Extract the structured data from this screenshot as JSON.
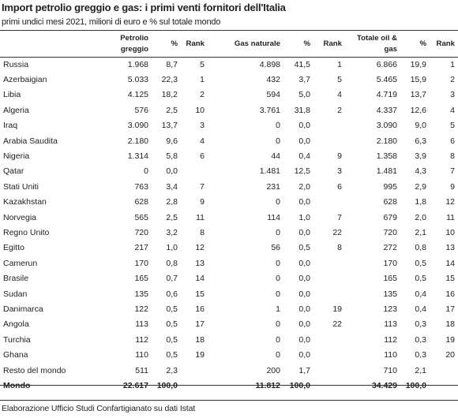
{
  "title": "Import petrolio greggio e gas: i primi venti fornitori dell'Italia",
  "subtitle": "primi undici mesi 2021, milioni di euro e % sul totale mondo",
  "headers": {
    "country": "",
    "petrolio": "Petrolio greggio",
    "pct1": "%",
    "rank1": "Rank",
    "gas": "Gas naturale",
    "pct2": "%",
    "rank2": "Rank",
    "totale": "Totale oil & gas",
    "pct3": "%",
    "rank3": "Rank"
  },
  "rows": [
    {
      "country": "Russia",
      "oil": "1.968",
      "oil_pct": "8,7",
      "oil_rank": "5",
      "gas": "4.898",
      "gas_pct": "41,5",
      "gas_rank": "1",
      "tot": "6.866",
      "tot_pct": "19,9",
      "tot_rank": "1"
    },
    {
      "country": "Azerbaigian",
      "oil": "5.033",
      "oil_pct": "22,3",
      "oil_rank": "1",
      "gas": "432",
      "gas_pct": "3,7",
      "gas_rank": "5",
      "tot": "5.465",
      "tot_pct": "15,9",
      "tot_rank": "2"
    },
    {
      "country": "Libia",
      "oil": "4.125",
      "oil_pct": "18,2",
      "oil_rank": "2",
      "gas": "594",
      "gas_pct": "5,0",
      "gas_rank": "4",
      "tot": "4.719",
      "tot_pct": "13,7",
      "tot_rank": "3"
    },
    {
      "country": "Algeria",
      "oil": "576",
      "oil_pct": "2,5",
      "oil_rank": "10",
      "gas": "3.761",
      "gas_pct": "31,8",
      "gas_rank": "2",
      "tot": "4.337",
      "tot_pct": "12,6",
      "tot_rank": "4"
    },
    {
      "country": "Iraq",
      "oil": "3.090",
      "oil_pct": "13,7",
      "oil_rank": "3",
      "gas": "0",
      "gas_pct": "0,0",
      "gas_rank": "",
      "tot": "3.090",
      "tot_pct": "9,0",
      "tot_rank": "5"
    },
    {
      "country": "Arabia Saudita",
      "oil": "2.180",
      "oil_pct": "9,6",
      "oil_rank": "4",
      "gas": "0",
      "gas_pct": "0,0",
      "gas_rank": "",
      "tot": "2.180",
      "tot_pct": "6,3",
      "tot_rank": "6"
    },
    {
      "country": "Nigeria",
      "oil": "1.314",
      "oil_pct": "5,8",
      "oil_rank": "6",
      "gas": "44",
      "gas_pct": "0,4",
      "gas_rank": "9",
      "tot": "1.358",
      "tot_pct": "3,9",
      "tot_rank": "8"
    },
    {
      "country": "Qatar",
      "oil": "0",
      "oil_pct": "0,0",
      "oil_rank": "",
      "gas": "1.481",
      "gas_pct": "12,5",
      "gas_rank": "3",
      "tot": "1.481",
      "tot_pct": "4,3",
      "tot_rank": "7"
    },
    {
      "country": "Stati Uniti",
      "oil": "763",
      "oil_pct": "3,4",
      "oil_rank": "7",
      "gas": "231",
      "gas_pct": "2,0",
      "gas_rank": "6",
      "tot": "995",
      "tot_pct": "2,9",
      "tot_rank": "9"
    },
    {
      "country": "Kazakhstan",
      "oil": "628",
      "oil_pct": "2,8",
      "oil_rank": "9",
      "gas": "0",
      "gas_pct": "0,0",
      "gas_rank": "",
      "tot": "628",
      "tot_pct": "1,8",
      "tot_rank": "12"
    },
    {
      "country": "Norvegia",
      "oil": "565",
      "oil_pct": "2,5",
      "oil_rank": "11",
      "gas": "114",
      "gas_pct": "1,0",
      "gas_rank": "7",
      "tot": "679",
      "tot_pct": "2,0",
      "tot_rank": "11"
    },
    {
      "country": "Regno Unito",
      "oil": "720",
      "oil_pct": "3,2",
      "oil_rank": "8",
      "gas": "0",
      "gas_pct": "0,0",
      "gas_rank": "22",
      "tot": "720",
      "tot_pct": "2,1",
      "tot_rank": "10"
    },
    {
      "country": "Egitto",
      "oil": "217",
      "oil_pct": "1,0",
      "oil_rank": "12",
      "gas": "56",
      "gas_pct": "0,5",
      "gas_rank": "8",
      "tot": "272",
      "tot_pct": "0,8",
      "tot_rank": "13"
    },
    {
      "country": "Camerun",
      "oil": "170",
      "oil_pct": "0,8",
      "oil_rank": "13",
      "gas": "0",
      "gas_pct": "0,0",
      "gas_rank": "",
      "tot": "170",
      "tot_pct": "0,5",
      "tot_rank": "14"
    },
    {
      "country": "Brasile",
      "oil": "165",
      "oil_pct": "0,7",
      "oil_rank": "14",
      "gas": "0",
      "gas_pct": "0,0",
      "gas_rank": "",
      "tot": "165",
      "tot_pct": "0,5",
      "tot_rank": "15"
    },
    {
      "country": "Sudan",
      "oil": "135",
      "oil_pct": "0,6",
      "oil_rank": "15",
      "gas": "0",
      "gas_pct": "0,0",
      "gas_rank": "",
      "tot": "135",
      "tot_pct": "0,4",
      "tot_rank": "16"
    },
    {
      "country": "Danimarca",
      "oil": "122",
      "oil_pct": "0,5",
      "oil_rank": "16",
      "gas": "1",
      "gas_pct": "0,0",
      "gas_rank": "19",
      "tot": "123",
      "tot_pct": "0,4",
      "tot_rank": "17"
    },
    {
      "country": "Angola",
      "oil": "113",
      "oil_pct": "0,5",
      "oil_rank": "17",
      "gas": "0",
      "gas_pct": "0,0",
      "gas_rank": "22",
      "tot": "113",
      "tot_pct": "0,3",
      "tot_rank": "18"
    },
    {
      "country": "Turchia",
      "oil": "112",
      "oil_pct": "0,5",
      "oil_rank": "18",
      "gas": "0",
      "gas_pct": "0,0",
      "gas_rank": "",
      "tot": "112",
      "tot_pct": "0,3",
      "tot_rank": "19"
    },
    {
      "country": "Ghana",
      "oil": "110",
      "oil_pct": "0,5",
      "oil_rank": "19",
      "gas": "0",
      "gas_pct": "0,0",
      "gas_rank": "",
      "tot": "110",
      "tot_pct": "0,3",
      "tot_rank": "20"
    },
    {
      "country": "Resto del mondo",
      "oil": "511",
      "oil_pct": "2,3",
      "oil_rank": "",
      "gas": "200",
      "gas_pct": "1,7",
      "gas_rank": "",
      "tot": "710",
      "tot_pct": "2,1",
      "tot_rank": ""
    }
  ],
  "total": {
    "country": "Mondo",
    "oil": "22.617",
    "oil_pct": "100,0",
    "oil_rank": "",
    "gas": "11.812",
    "gas_pct": "100,0",
    "gas_rank": "",
    "tot": "34.429",
    "tot_pct": "100,0",
    "tot_rank": ""
  },
  "footer": "Elaborazione Ufficio Studi Confartigianato su dati Istat"
}
